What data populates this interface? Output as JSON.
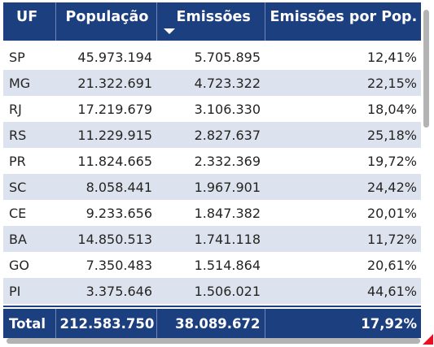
{
  "table": {
    "columns": {
      "uf": "UF",
      "populacao": "População",
      "emissoes": "Emissões",
      "emissoes_por_pop": "Emissões por Pop."
    },
    "sort": {
      "column": "Emissões",
      "direction": "descending"
    },
    "rows": [
      {
        "uf": "SP",
        "populacao": "45.973.194",
        "emissoes": "5.705.895",
        "emissoes_por_pop": "12,41%"
      },
      {
        "uf": "MG",
        "populacao": "21.322.691",
        "emissoes": "4.723.322",
        "emissoes_por_pop": "22,15%"
      },
      {
        "uf": "RJ",
        "populacao": "17.219.679",
        "emissoes": "3.106.330",
        "emissoes_por_pop": "18,04%"
      },
      {
        "uf": "RS",
        "populacao": "11.229.915",
        "emissoes": "2.827.637",
        "emissoes_por_pop": "25,18%"
      },
      {
        "uf": "PR",
        "populacao": "11.824.665",
        "emissoes": "2.332.369",
        "emissoes_por_pop": "19,72%"
      },
      {
        "uf": "SC",
        "populacao": "8.058.441",
        "emissoes": "1.967.901",
        "emissoes_por_pop": "24,42%"
      },
      {
        "uf": "CE",
        "populacao": "9.233.656",
        "emissoes": "1.847.382",
        "emissoes_por_pop": "20,01%"
      },
      {
        "uf": "BA",
        "populacao": "14.850.513",
        "emissoes": "1.741.118",
        "emissoes_por_pop": "11,72%"
      },
      {
        "uf": "GO",
        "populacao": "7.350.483",
        "emissoes": "1.514.864",
        "emissoes_por_pop": "20,61%"
      },
      {
        "uf": "PI",
        "populacao": "3.375.646",
        "emissoes": "1.506.021",
        "emissoes_por_pop": "44,61%"
      }
    ],
    "total": {
      "label": "Total",
      "populacao": "212.583.750",
      "emissoes": "38.089.672",
      "emissoes_por_pop": "17,92%"
    }
  },
  "colors": {
    "header_background": "#1c3f80",
    "header_text": "#ffffff",
    "band_row": "#dde3ee",
    "plain_row": "#ffffff",
    "scrollbar": "#b3b3b3",
    "resize_corner": "#e81123"
  },
  "icons": {
    "sort": "sort-descending-icon",
    "corner": "resize-corner-icon"
  }
}
